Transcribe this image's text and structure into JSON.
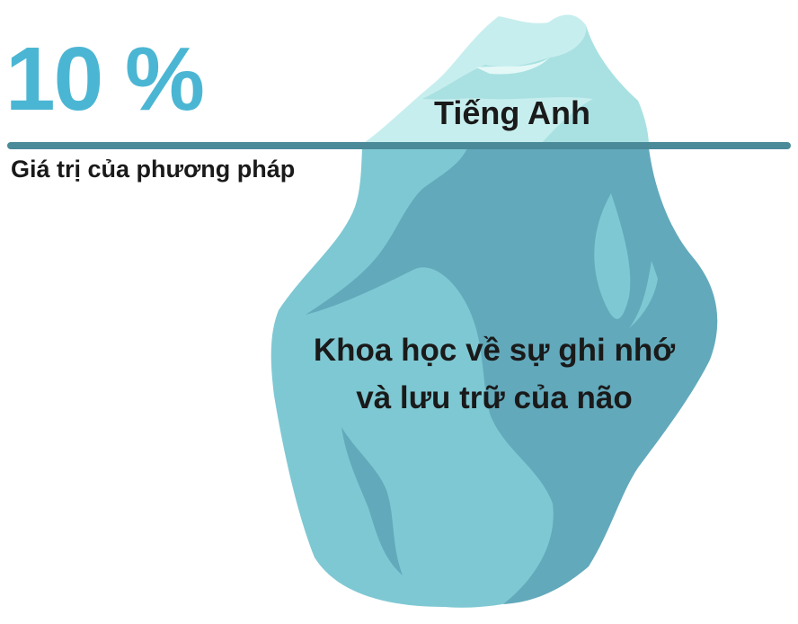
{
  "headline": {
    "percent": "10 %",
    "subtitle": "Giá trị của phương pháp"
  },
  "iceberg": {
    "tip_label": "Tiếng Anh",
    "below_label_line1": "Khoa học về sự ghi nhớ",
    "below_label_line2": "và lưu trữ của não"
  },
  "colors": {
    "percent_text": "#4bb6d3",
    "waterline": "#4a8a99",
    "tip_light": "#c7eeee",
    "tip_shade": "#a9e1e2",
    "body_light": "#7ec8d3",
    "body_dark": "#62a9bb",
    "label_text": "#1a1a1a"
  }
}
